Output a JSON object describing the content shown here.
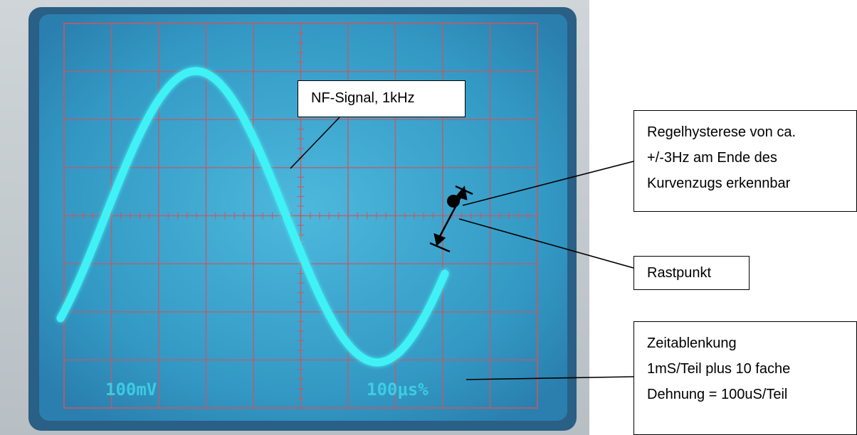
{
  "screen": {
    "readout_left": "100mV",
    "readout_right": "100μs%",
    "trace_color": "#3ff2f5",
    "screen_color": "#3aa4cc",
    "grid_color": "#c05a68"
  },
  "callouts": {
    "signal": [
      "NF-Signal, 1kHz"
    ],
    "hysteresis": [
      "Regelhysterese von ca.",
      "+/-3Hz am Ende des",
      "Kurvenzugs erkennbar"
    ],
    "rastpunkt": [
      "Rastpunkt"
    ],
    "zeitablenkung": [
      "Zeitablenkung",
      "1mS/Teil plus 10 fache",
      "Dehnung = 100uS/Teil"
    ]
  }
}
